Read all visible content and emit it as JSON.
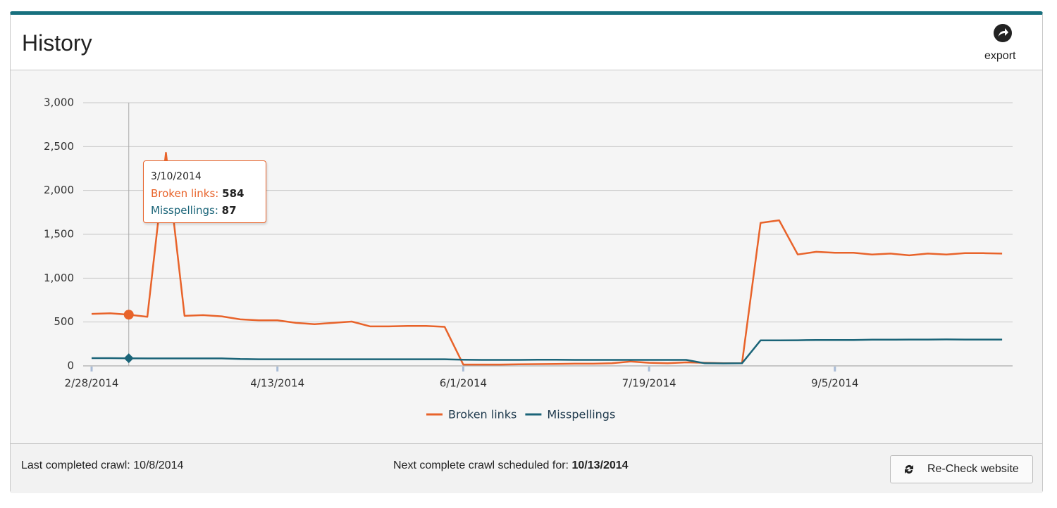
{
  "header": {
    "title": "History",
    "export": "export"
  },
  "chart_data": {
    "type": "line",
    "categories": [
      "2/28/2014",
      null,
      null,
      null,
      null,
      null,
      null,
      null,
      null,
      null,
      "4/13/2014",
      null,
      null,
      null,
      null,
      null,
      null,
      null,
      null,
      null,
      "6/1/2014",
      null,
      null,
      null,
      null,
      null,
      null,
      null,
      null,
      null,
      "7/19/2014",
      null,
      null,
      null,
      null,
      null,
      null,
      null,
      null,
      null,
      "9/5/2014",
      null,
      null,
      null,
      null,
      null,
      null,
      null,
      null,
      null
    ],
    "series": [
      {
        "name": "Broken links",
        "color": "#e8632a",
        "values": [
          593,
          600,
          584,
          560,
          2430,
          570,
          578,
          565,
          530,
          520,
          520,
          490,
          475,
          490,
          505,
          450,
          450,
          455,
          455,
          445,
          15,
          15,
          15,
          18,
          20,
          22,
          25,
          25,
          30,
          50,
          35,
          30,
          40,
          35,
          30,
          30,
          1630,
          1660,
          1270,
          1300,
          1290,
          1290,
          1270,
          1280,
          1260,
          1280,
          1270,
          1285,
          1285,
          1280
        ]
      },
      {
        "name": "Misspellings",
        "color": "#1a6478",
        "values": [
          88,
          88,
          87,
          85,
          85,
          85,
          85,
          85,
          78,
          75,
          75,
          75,
          75,
          75,
          75,
          75,
          75,
          75,
          75,
          75,
          70,
          68,
          68,
          68,
          70,
          70,
          68,
          68,
          68,
          68,
          68,
          68,
          68,
          30,
          28,
          30,
          290,
          290,
          292,
          295,
          295,
          295,
          298,
          298,
          300,
          300,
          302,
          300,
          300,
          300
        ]
      }
    ],
    "ylim": [
      0,
      3000
    ],
    "yticks": [
      0,
      500,
      {
        "value": 1000,
        "label": "1,000"
      },
      {
        "value": 1500,
        "label": "1,500"
      },
      {
        "value": 2000,
        "label": "2,000"
      },
      {
        "value": 2500,
        "label": "2,500"
      },
      {
        "value": 3000,
        "label": "3,000"
      }
    ],
    "grid": true,
    "legend": "bottom"
  },
  "tooltip": {
    "date": "3/10/2014",
    "rows": [
      {
        "label": "Broken links:",
        "value": 584
      },
      {
        "label": "Misspellings:",
        "value": 87
      }
    ]
  },
  "footer": {
    "last_crawl_label": "Last completed crawl:",
    "last_crawl_date": "10/8/2014",
    "next_crawl_label": "Next complete crawl scheduled for:",
    "next_crawl_date": "10/13/2014",
    "button": "Re-Check website"
  }
}
